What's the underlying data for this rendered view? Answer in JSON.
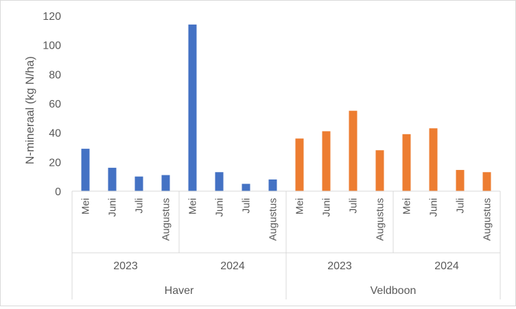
{
  "chart_data": {
    "type": "bar",
    "ylabel": "N-mineraal (kg N/ha)",
    "ylim": [
      0,
      120
    ],
    "yticks": [
      0,
      20,
      40,
      60,
      80,
      100,
      120
    ],
    "grid": false,
    "legend": "none",
    "groups": [
      {
        "crop": "Haver",
        "color": "#4472c4",
        "years": [
          {
            "year": "2023",
            "months": [
              "Mei",
              "Juni",
              "Juli",
              "Augustus"
            ],
            "values": [
              29,
              16,
              10,
              11
            ]
          },
          {
            "year": "2024",
            "months": [
              "Mei",
              "Juni",
              "Juli",
              "Augustus"
            ],
            "values": [
              114,
              13,
              5,
              8
            ]
          }
        ]
      },
      {
        "crop": "Veldboon",
        "color": "#ed7d31",
        "years": [
          {
            "year": "2023",
            "months": [
              "Mei",
              "Juni",
              "Juli",
              "Augustus"
            ],
            "values": [
              36,
              41,
              55,
              28
            ]
          },
          {
            "year": "2024",
            "months": [
              "Mei",
              "Juni",
              "Juli",
              "Augustus"
            ],
            "values": [
              39,
              43,
              14.5,
              13
            ]
          }
        ]
      }
    ]
  }
}
